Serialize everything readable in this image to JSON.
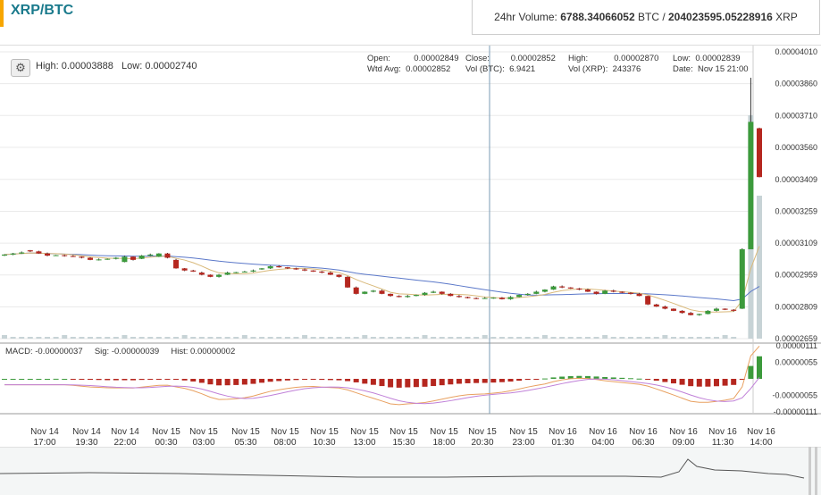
{
  "header": {
    "pair_title": "XRP/BTC",
    "volume_label": "24hr Volume:",
    "volume_btc": "6788.34066052",
    "btc_unit": "BTC /",
    "volume_xrp": "204023595.05228916",
    "xrp_unit": "XRP"
  },
  "info": {
    "high_label": "High: 0.00003888",
    "low_label": "Low: 0.00002740",
    "ohlc": {
      "open_label": "Open:",
      "open": "0.00002849",
      "wtd_label": "Wtd Avg:",
      "wtd": "0.00002852",
      "close_label": "Close:",
      "close": "0.00002852",
      "volbtc_label": "Vol (BTC):",
      "volbtc": "6.9421",
      "high_label": "High:",
      "high": "0.00002870",
      "volxrp_label": "Vol (XRP):",
      "volxrp": "243376",
      "low_label": "Low:",
      "low": "0.00002839",
      "date_label": "Date:",
      "date": "Nov 15 21:00"
    }
  },
  "macd": {
    "macd_label": "MACD:",
    "macd": "-0.00000037",
    "sig_label": "Sig:",
    "sig": "-0.00000039",
    "hist_label": "Hist:",
    "hist": "0.00000002"
  },
  "colors": {
    "up": "#3c9a3c",
    "down": "#b5271f",
    "sma_fast": "#d9b97a",
    "sma_slow": "#5b78c9",
    "volume": "#c7d3d6",
    "macd_line": "#e8a060",
    "signal_line": "#c080d8"
  },
  "chart_data": [
    {
      "type": "candlestick",
      "title": "",
      "y_axis_ticks": [
        "0.00004010",
        "0.00003860",
        "0.00003710",
        "0.00003560",
        "0.00003409",
        "0.00003259",
        "0.00003109",
        "0.00002959",
        "0.00002809",
        "0.00002659"
      ],
      "ylim": [
        2.659e-05,
        4.01e-05
      ],
      "x_axis_ticks": [
        [
          "Nov 14",
          "17:00"
        ],
        [
          "Nov 14",
          "19:30"
        ],
        [
          "Nov 14",
          "22:00"
        ],
        [
          "Nov 15",
          "00:30"
        ],
        [
          "Nov 15",
          "03:00"
        ],
        [
          "Nov 15",
          "05:30"
        ],
        [
          "Nov 15",
          "08:00"
        ],
        [
          "Nov 15",
          "10:30"
        ],
        [
          "Nov 15",
          "13:00"
        ],
        [
          "Nov 15",
          "15:30"
        ],
        [
          "Nov 15",
          "18:00"
        ],
        [
          "Nov 15",
          "20:30"
        ],
        [
          "Nov 15",
          "23:00"
        ],
        [
          "Nov 16",
          "01:30"
        ],
        [
          "Nov 16",
          "04:00"
        ],
        [
          "Nov 16",
          "06:30"
        ],
        [
          "Nov 16",
          "09:00"
        ],
        [
          "Nov 16",
          "11:30"
        ],
        [
          "Nov 16",
          "14:00"
        ]
      ],
      "candles_close": [
        3.055e-05,
        3.06e-05,
        3.065e-05,
        3.07e-05,
        3.06e-05,
        3.05e-05,
        3.052e-05,
        3.048e-05,
        3.045e-05,
        3.04e-05,
        3.03e-05,
        3.032e-05,
        3.035e-05,
        3.04e-05,
        3.045e-05,
        3.03e-05,
        3.05e-05,
        3.055e-05,
        3.06e-05,
        3.04e-05,
        2.99e-05,
        2.98e-05,
        2.975e-05,
        2.96e-05,
        2.95e-05,
        2.96e-05,
        2.97e-05,
        2.972e-05,
        2.975e-05,
        2.98e-05,
        2.99e-05,
        3e-05,
        2.995e-05,
        2.99e-05,
        2.985e-05,
        2.98e-05,
        2.975e-05,
        2.97e-05,
        2.96e-05,
        2.95e-05,
        2.9e-05,
        2.87e-05,
        2.88e-05,
        2.885e-05,
        2.87e-05,
        2.86e-05,
        2.855e-05,
        2.86e-05,
        2.865e-05,
        2.875e-05,
        2.88e-05,
        2.87e-05,
        2.86e-05,
        2.855e-05,
        2.85e-05,
        2.848e-05,
        2.85e-05,
        2.852e-05,
        2.845e-05,
        2.855e-05,
        2.865e-05,
        2.87e-05,
        2.88e-05,
        2.89e-05,
        2.905e-05,
        2.9e-05,
        2.895e-05,
        2.89e-05,
        2.88e-05,
        2.87e-05,
        2.885e-05,
        2.88e-05,
        2.875e-05,
        2.87e-05,
        2.86e-05,
        2.82e-05,
        2.81e-05,
        2.8e-05,
        2.79e-05,
        2.78e-05,
        2.77e-05,
        2.775e-05,
        2.79e-05,
        2.8e-05,
        2.795e-05,
        2.79e-05,
        3.08e-05,
        3.68e-05,
        3.42e-05
      ],
      "candles_open": [
        3.05e-05,
        3.055e-05,
        3.06e-05,
        3.075e-05,
        3.07e-05,
        3.06e-05,
        3.05e-05,
        3.052e-05,
        3.048e-05,
        3.045e-05,
        3.04e-05,
        3.03e-05,
        3.032e-05,
        3.035e-05,
        3.02e-05,
        3.045e-05,
        3.035e-05,
        3.05e-05,
        3.045e-05,
        3.06e-05,
        3.03e-05,
        2.99e-05,
        2.98e-05,
        2.97e-05,
        2.96e-05,
        2.95e-05,
        2.96e-05,
        2.97e-05,
        2.972e-05,
        2.975e-05,
        2.985e-05,
        2.99e-05,
        3e-05,
        2.995e-05,
        2.99e-05,
        2.985e-05,
        2.98e-05,
        2.975e-05,
        2.97e-05,
        2.96e-05,
        2.95e-05,
        2.9e-05,
        2.87e-05,
        2.88e-05,
        2.885e-05,
        2.87e-05,
        2.86e-05,
        2.855e-05,
        2.86e-05,
        2.865e-05,
        2.875e-05,
        2.88e-05,
        2.87e-05,
        2.86e-05,
        2.855e-05,
        2.85e-05,
        2.848e-05,
        2.85e-05,
        2.852e-05,
        2.845e-05,
        2.855e-05,
        2.865e-05,
        2.87e-05,
        2.88e-05,
        2.89e-05,
        2.905e-05,
        2.9e-05,
        2.895e-05,
        2.89e-05,
        2.88e-05,
        2.87e-05,
        2.885e-05,
        2.88e-05,
        2.875e-05,
        2.87e-05,
        2.86e-05,
        2.82e-05,
        2.81e-05,
        2.8e-05,
        2.79e-05,
        2.78e-05,
        2.77e-05,
        2.775e-05,
        2.79e-05,
        2.8e-05,
        2.795e-05,
        2.8e-05,
        3.08e-05,
        3.65e-05
      ],
      "series_names": []
    },
    {
      "type": "macd",
      "y_axis_ticks": [
        "0.00000111",
        "0.00000055",
        "-0.00000055",
        "-0.00000111"
      ],
      "ylim": [
        -1.11e-06,
        1.11e-06
      ]
    }
  ]
}
